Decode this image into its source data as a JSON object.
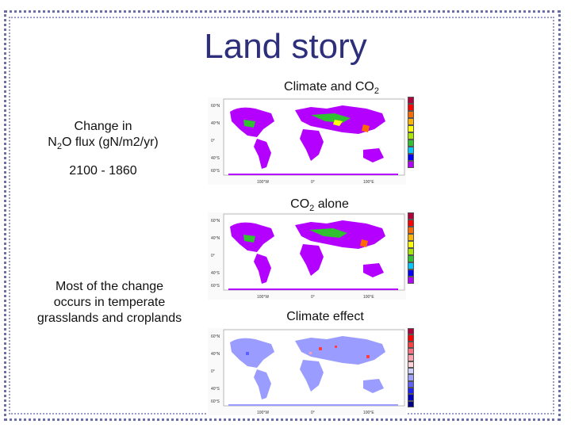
{
  "slide": {
    "title": "Land story",
    "panel1": {
      "label": "Climate and CO",
      "sub": "2"
    },
    "panel2": {
      "label": "CO",
      "sub": "2",
      "suffix": " alone"
    },
    "panel3": {
      "label": "Climate effect"
    },
    "left_label1": {
      "line1": "Change in",
      "n": "N",
      "sub": "2",
      "rest": "O flux (gN/m2/yr)"
    },
    "left_label2": "2100 - 1860",
    "left_label3": [
      "Most of the change",
      "occurs in temperate",
      "grasslands and croplands"
    ]
  },
  "colors": {
    "land_flux": "#b300ff",
    "land_low": "#8080ff",
    "frame": "#6b6fa6",
    "title": "#2e2f7a"
  },
  "colorbar_positive": [
    "#b2003a",
    "#ff0000",
    "#ff6a00",
    "#ffb400",
    "#ffff00",
    "#a8e600",
    "#30c030",
    "#00c8ff",
    "#0000ff",
    "#b300ff"
  ],
  "colorbar_diverging": [
    "#b2003a",
    "#ff0000",
    "#ff4040",
    "#ff7080",
    "#ffa0b0",
    "#ffd0d8",
    "#d0d0ff",
    "#a0a0ff",
    "#6060ff",
    "#2020ff",
    "#0000c0",
    "#00008a"
  ]
}
